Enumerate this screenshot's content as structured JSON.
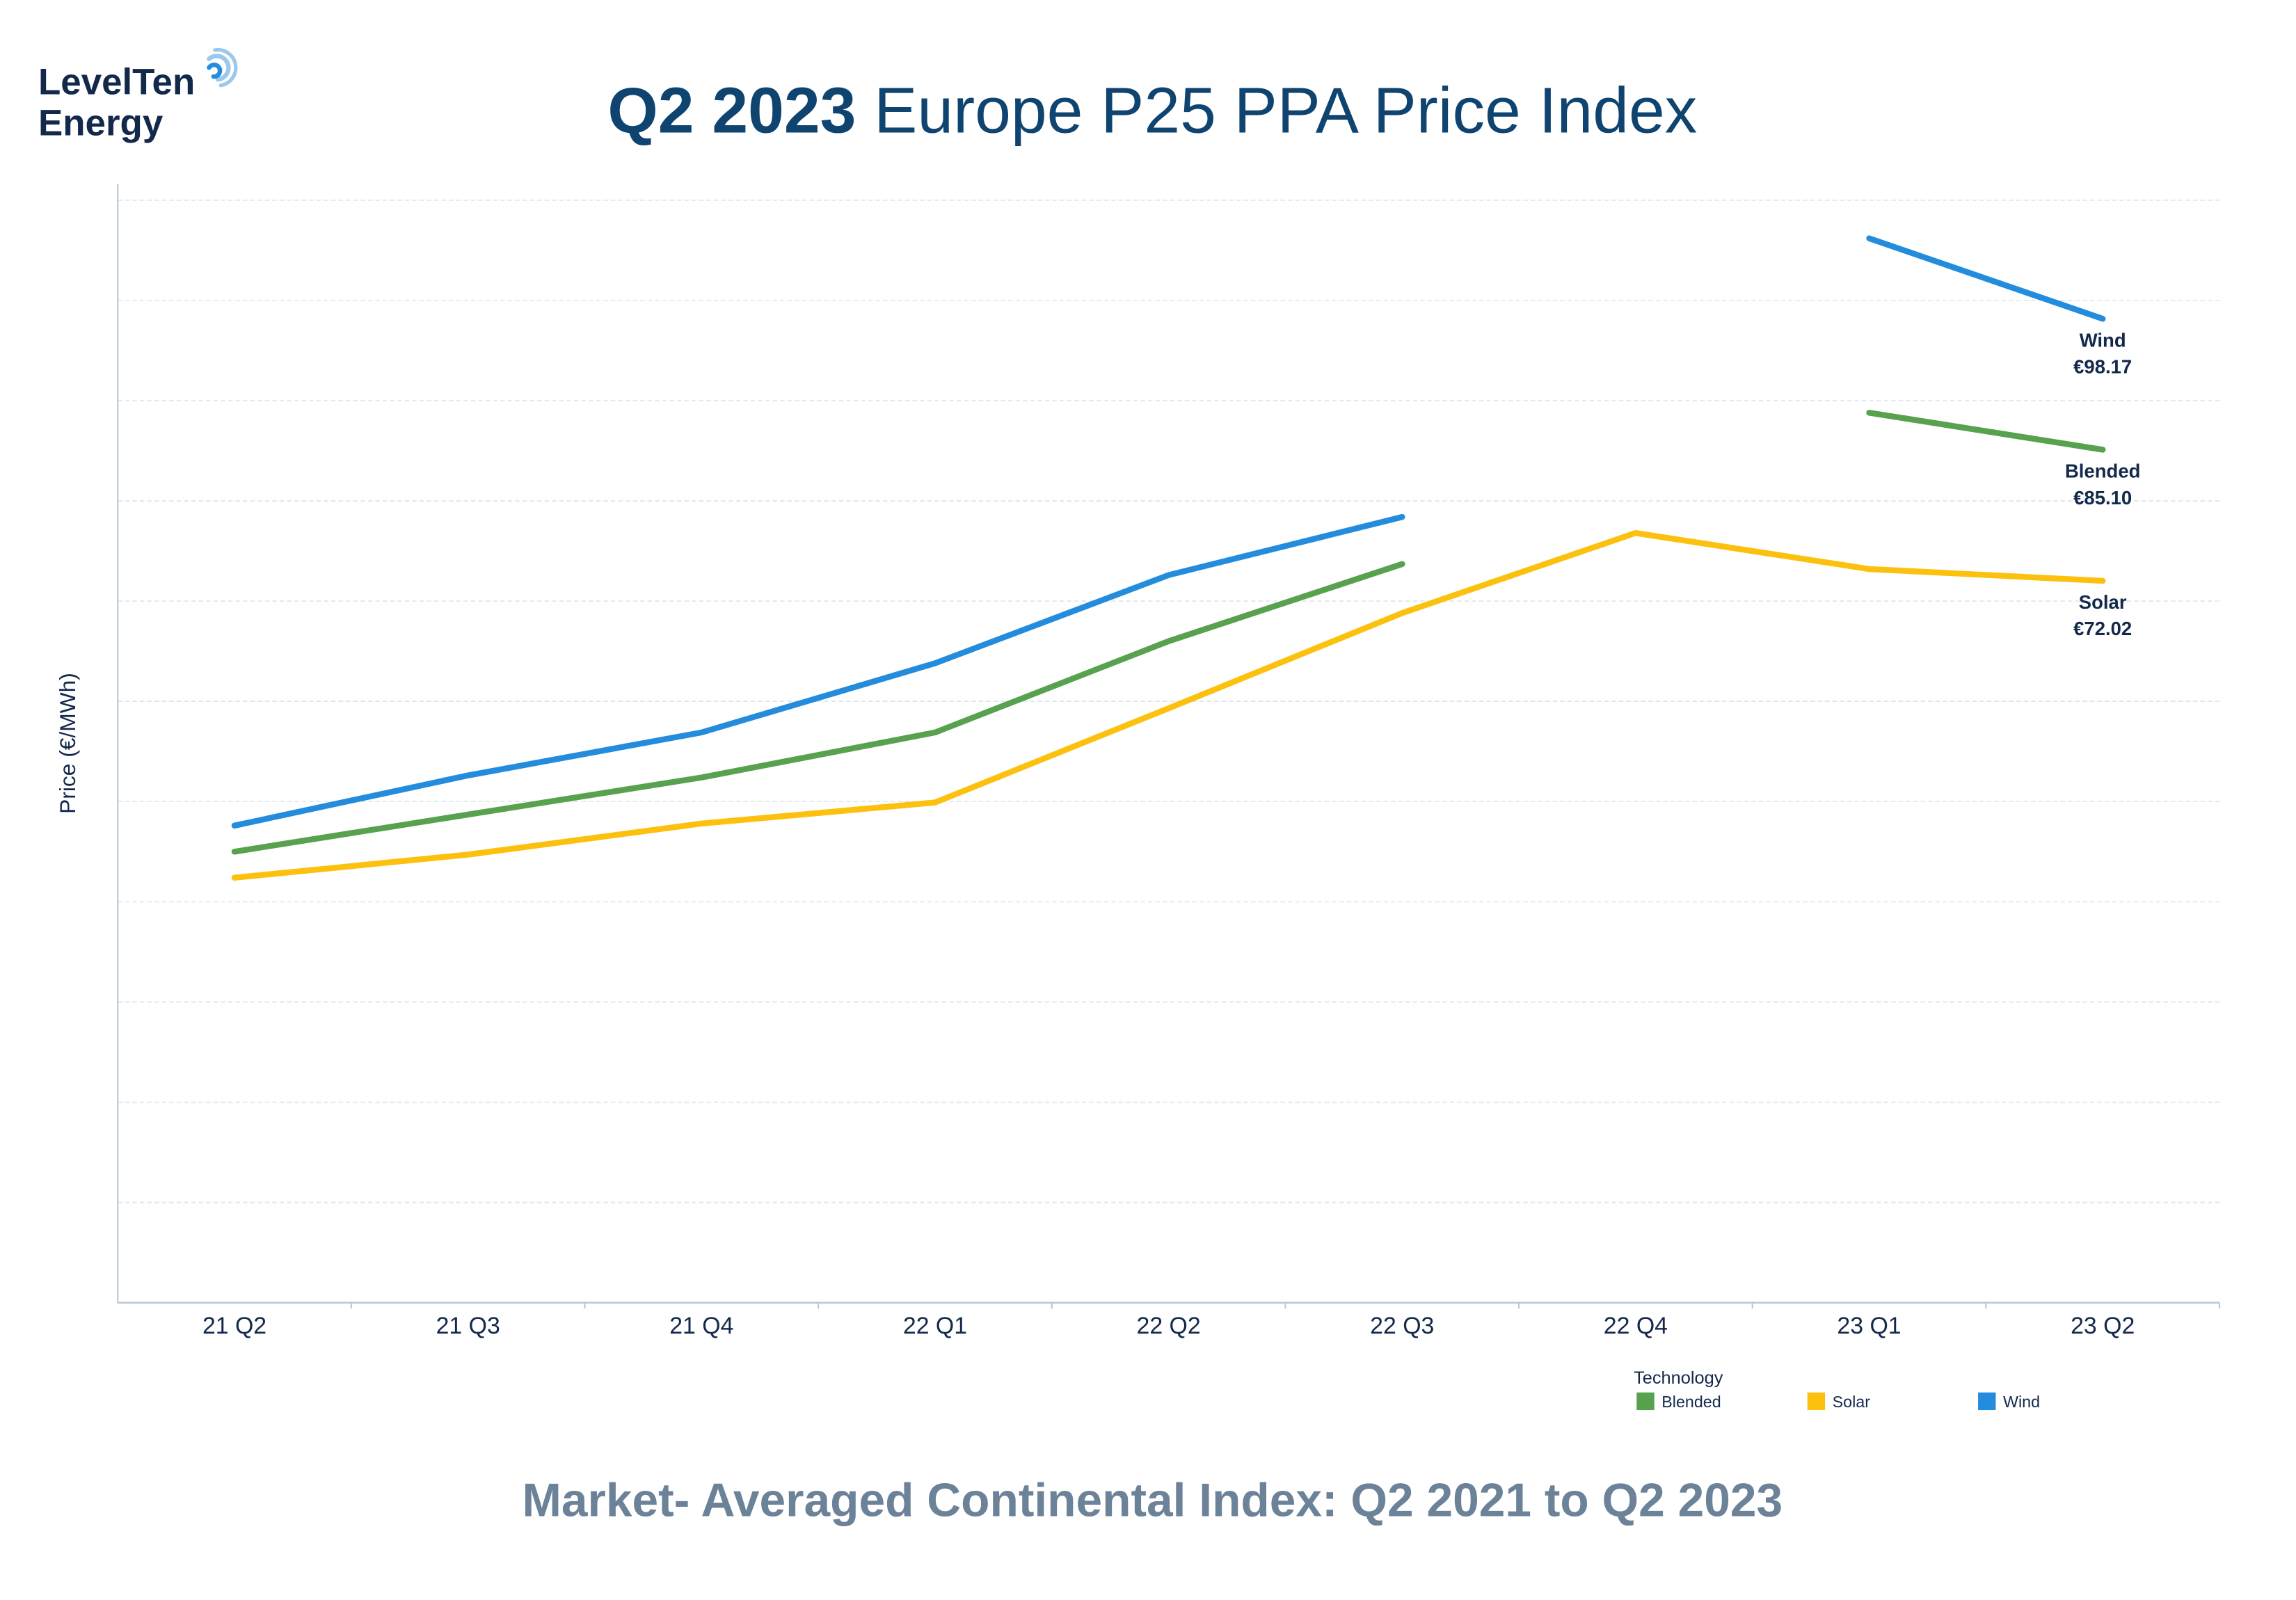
{
  "logo": {
    "line1": "LevelTen",
    "line2": "Energy"
  },
  "header": {
    "title_bold": "Q2 2023",
    "title_rest": " Europe P25 PPA Price Index"
  },
  "footer": {
    "subtitle": "Market- Averaged Continental Index: Q2 2021 to Q2 2023"
  },
  "colors": {
    "title": "#0f4470",
    "subtitle": "#6b8299",
    "text": "#13294b",
    "grid": "#dde5ee",
    "axis": "#b8c8d8"
  },
  "chart_data": {
    "type": "line",
    "title": "Q2 2023 Europe P25 PPA Price Index",
    "subtitle": "Market- Averaged Continental Index: Q2 2021 to Q2 2023",
    "xlabel": "",
    "ylabel": "Price (€/MWh)",
    "ylim": [
      0,
      110
    ],
    "y_tick_step": 10,
    "y_tick_labels_shown": false,
    "grid": true,
    "categories": [
      "21 Q2",
      "21 Q3",
      "21 Q4",
      "22 Q1",
      "22 Q2",
      "22 Q3",
      "22 Q4",
      "23 Q1",
      "23 Q2"
    ],
    "legend": {
      "title": "Technology",
      "placement": "bottom-right"
    },
    "series": [
      {
        "name": "Blended",
        "color": "#58a14e",
        "values": [
          45.0,
          48.7,
          52.4,
          56.9,
          66.0,
          73.7,
          null,
          88.8,
          85.1
        ],
        "end_label": "€85.10"
      },
      {
        "name": "Solar",
        "color": "#fcc10f",
        "values": [
          42.4,
          44.7,
          47.8,
          49.9,
          59.3,
          68.8,
          76.8,
          73.2,
          72.02
        ],
        "end_label": "€72.02"
      },
      {
        "name": "Wind",
        "color": "#248cdc",
        "values": [
          47.6,
          52.6,
          56.9,
          63.8,
          72.6,
          78.4,
          null,
          106.2,
          98.17
        ],
        "end_label": "€98.17"
      }
    ]
  }
}
